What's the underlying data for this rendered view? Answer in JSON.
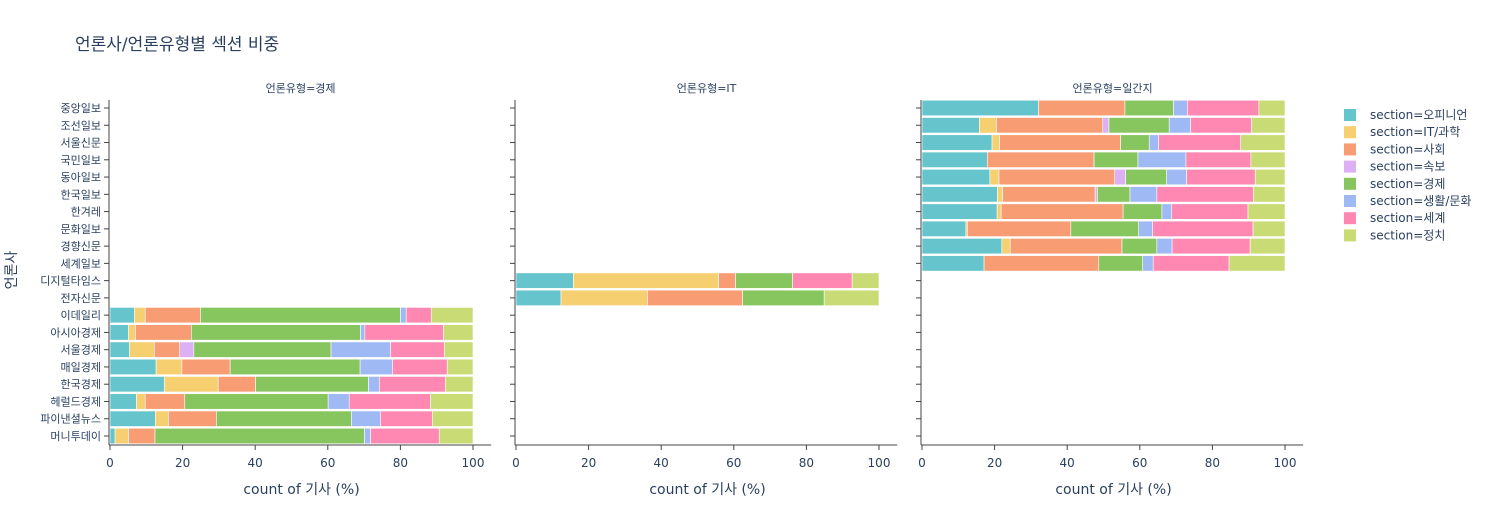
{
  "chart_data": {
    "type": "bar",
    "orientation": "horizontal",
    "barmode": "stack",
    "title": "언론사/언론유형별 섹션 비중",
    "ylabel": "언론사",
    "xlabel": "count of 기사 (%)",
    "xlim": [
      0,
      105
    ],
    "xticks": [
      0,
      20,
      40,
      60,
      80,
      100
    ],
    "grid": false,
    "legend_position": "right",
    "categories": [
      "중앙일보",
      "조선일보",
      "서울신문",
      "국민일보",
      "동아일보",
      "한국일보",
      "한겨레",
      "문화일보",
      "경향신문",
      "세계일보",
      "디지털타임스",
      "전자신문",
      "이데일리",
      "아시아경제",
      "서울경제",
      "매일경제",
      "한국경제",
      "헤럴드경제",
      "파이낸셜뉴스",
      "머니투데이"
    ],
    "series": [
      {
        "name": "section=오피니언",
        "color": "#66c5cc"
      },
      {
        "name": "section=IT/과학",
        "color": "#f6cf71"
      },
      {
        "name": "section=사회",
        "color": "#f89c74"
      },
      {
        "name": "section=속보",
        "color": "#dcb0f2"
      },
      {
        "name": "section=경제",
        "color": "#87c55f"
      },
      {
        "name": "section=생활/문화",
        "color": "#9eb9f3"
      },
      {
        "name": "section=세계",
        "color": "#fe88b1"
      },
      {
        "name": "section=정치",
        "color": "#c9db74"
      }
    ],
    "facets": [
      {
        "title": "언론유형=경제",
        "bars": [
          {
            "category": "이데일리",
            "values": [
              6.7,
              3.0,
              15.2,
              0,
              55.1,
              1.6,
              6.9,
              11.5
            ]
          },
          {
            "category": "아시아경제",
            "values": [
              5.1,
              1.9,
              15.4,
              0,
              46.6,
              1.2,
              21.7,
              8.1
            ]
          },
          {
            "category": "서울경제",
            "values": [
              5.4,
              6.8,
              7.0,
              3.9,
              37.8,
              16.4,
              14.8,
              7.9
            ]
          },
          {
            "category": "매일경제",
            "values": [
              12.7,
              7.1,
              13.3,
              0,
              35.8,
              8.9,
              15.1,
              7.1
            ]
          },
          {
            "category": "한국경제",
            "values": [
              15.0,
              14.8,
              10.3,
              0,
              31.1,
              3.0,
              18.2,
              7.6
            ]
          },
          {
            "category": "헤럴드경제",
            "values": [
              7.3,
              2.4,
              10.9,
              0,
              39.5,
              5.8,
              22.4,
              11.7
            ]
          },
          {
            "category": "파이낸셜뉴스",
            "values": [
              12.5,
              3.6,
              13.2,
              0,
              37.2,
              8.0,
              14.3,
              11.2
            ]
          },
          {
            "category": "머니투데이",
            "values": [
              1.4,
              3.7,
              7.3,
              0,
              57.7,
              1.7,
              18.9,
              9.3
            ]
          }
        ]
      },
      {
        "title": "언론유형=IT",
        "bars": [
          {
            "category": "디지털타임스",
            "values": [
              15.8,
              40.0,
              4.7,
              0,
              15.7,
              0,
              16.4,
              7.4
            ]
          },
          {
            "category": "전자신문",
            "values": [
              12.4,
              23.8,
              26.2,
              0,
              22.5,
              0,
              0,
              15.1
            ]
          }
        ]
      },
      {
        "title": "언론유형=일간지",
        "bars": [
          {
            "category": "중앙일보",
            "values": [
              32.1,
              0,
              23.8,
              0,
              13.4,
              3.8,
              19.7,
              7.2
            ]
          },
          {
            "category": "조선일보",
            "values": [
              15.8,
              4.7,
              29.3,
              1.7,
              16.6,
              5.9,
              16.8,
              9.2
            ]
          },
          {
            "category": "서울신문",
            "values": [
              19.3,
              2.1,
              33.3,
              0,
              7.9,
              2.6,
              22.6,
              12.2
            ]
          },
          {
            "category": "국민일보",
            "values": [
              18.0,
              0,
              29.4,
              0,
              12.1,
              13.2,
              17.9,
              9.4
            ]
          },
          {
            "category": "동아일보",
            "values": [
              18.7,
              2.5,
              31.9,
              3.0,
              11.3,
              5.5,
              18.9,
              8.2
            ]
          },
          {
            "category": "한국일보",
            "values": [
              20.8,
              1.4,
              25.5,
              0.6,
              9.0,
              7.4,
              26.6,
              8.7
            ]
          },
          {
            "category": "한겨레",
            "values": [
              20.7,
              1.1,
              33.6,
              0,
              10.7,
              2.7,
              21.0,
              10.2
            ]
          },
          {
            "category": "문화일보",
            "values": [
              12.1,
              0.4,
              28.5,
              0,
              18.7,
              3.8,
              27.7,
              8.8
            ]
          },
          {
            "category": "경향신문",
            "values": [
              22.0,
              2.3,
              30.8,
              0,
              9.6,
              4.2,
              21.5,
              9.6
            ]
          },
          {
            "category": "세계일보",
            "values": [
              17.1,
              0,
              31.6,
              0,
              12.1,
              2.9,
              20.9,
              15.4
            ]
          }
        ]
      }
    ]
  }
}
